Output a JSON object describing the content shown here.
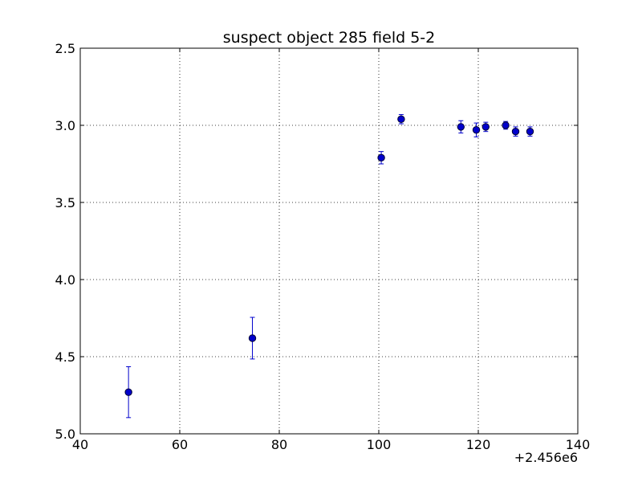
{
  "chart_data": {
    "type": "scatter",
    "title": "suspect object 285 field 5-2",
    "xlabel": "",
    "ylabel": "",
    "x_offset_label": "+2.456e6",
    "xlim": [
      40,
      140
    ],
    "ylim": [
      5.0,
      2.5
    ],
    "y_inverted": true,
    "x_ticks": [
      40,
      60,
      80,
      100,
      120,
      140
    ],
    "x_tick_labels": [
      "40",
      "60",
      "80",
      "100",
      "120",
      "140"
    ],
    "y_ticks": [
      2.5,
      3.0,
      3.5,
      4.0,
      4.5,
      5.0
    ],
    "y_tick_labels": [
      "2.5",
      "3.0",
      "3.5",
      "4.0",
      "4.5",
      "5.0"
    ],
    "grid": true,
    "marker_color": "#0000cc",
    "series": [
      {
        "points": [
          {
            "x": 49.7,
            "y": 4.73,
            "yerr": 0.165
          },
          {
            "x": 74.6,
            "y": 4.38,
            "yerr": 0.135
          },
          {
            "x": 100.5,
            "y": 3.21,
            "yerr": 0.04
          },
          {
            "x": 104.5,
            "y": 2.96,
            "yerr": 0.03
          },
          {
            "x": 116.5,
            "y": 3.01,
            "yerr": 0.04
          },
          {
            "x": 119.6,
            "y": 3.03,
            "yerr": 0.045
          },
          {
            "x": 121.5,
            "y": 3.01,
            "yerr": 0.03
          },
          {
            "x": 125.5,
            "y": 3.0,
            "yerr": 0.025
          },
          {
            "x": 127.5,
            "y": 3.04,
            "yerr": 0.03
          },
          {
            "x": 130.4,
            "y": 3.04,
            "yerr": 0.03
          }
        ]
      }
    ]
  }
}
